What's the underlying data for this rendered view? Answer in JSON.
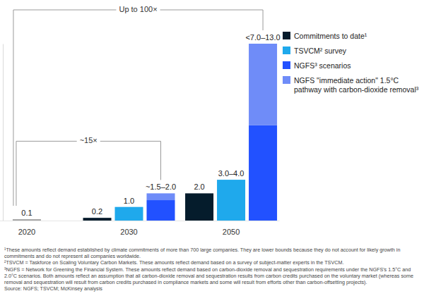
{
  "chart_data": {
    "type": "bar",
    "categories": [
      "2020",
      "2030",
      "2050"
    ],
    "series": [
      {
        "color": "#a6a6a6",
        "values": [
          0.1,
          null,
          null
        ],
        "value_labels": [
          "0.1",
          null,
          null
        ]
      },
      {
        "name": "Commitments to date¹",
        "color": "#051c2c",
        "values": [
          null,
          0.2,
          2.0
        ],
        "value_labels": [
          null,
          "0.2",
          "2.0"
        ]
      },
      {
        "name": "TSVCM² survey",
        "color": "#1fa9ec",
        "values": [
          null,
          1.0,
          3.0
        ],
        "value_labels": [
          null,
          "1.0",
          "3.0–4.0"
        ]
      },
      {
        "name": "NGFS³ scenarios",
        "color": "#2251ff",
        "values": [
          null,
          1.5,
          7.0
        ],
        "value_labels": [
          null,
          "~1.5–2.0",
          "<7.0–13.0"
        ]
      },
      {
        "name": "NGFS \"immediate action\" 1.5°C pathway with carbon-dioxide removal³",
        "color": "#6f8cf8",
        "values": [
          null,
          0.5,
          6.0
        ],
        "stacked": true,
        "data_labels": false
      }
    ],
    "ylim": [
      0,
      13
    ],
    "yticks": [],
    "tick_labels": "x",
    "grid": false,
    "data_labels": true,
    "legend": "right",
    "annotations": [
      {
        "text": "Up to 100×"
      },
      {
        "text": "~15×"
      }
    ],
    "notes": [
      "¹These amounts reflect demand established by climate commitments of more than 700 large companies. They are lower bounds because they do not account for likely growth in commitments and do not represent all companies worldwide.",
      "²TSVCM = Taskforce on Scaling Voluntary Carbon Markets. These amounts reflect demand based on a survey of subject-matter experts in the TSVCM.",
      "³NGFS = Network for Greening the Financial System. These amounts reflect demand based on carbon-dioxide removal and sequestration requirements under the NGFS's 1.5°C and 2.0°C scenarios. Both amounts reflect an assumption that all carbon-dioxide removal and sequestration results from carbon credits purchased on the voluntary market (whereas some removal and sequestration will result from carbon credits purchased in compliance markets and some will result from efforts other than carbon-offsetting projects)."
    ],
    "source": "Source: NGFS; TSVCM; McKinsey analysis"
  }
}
